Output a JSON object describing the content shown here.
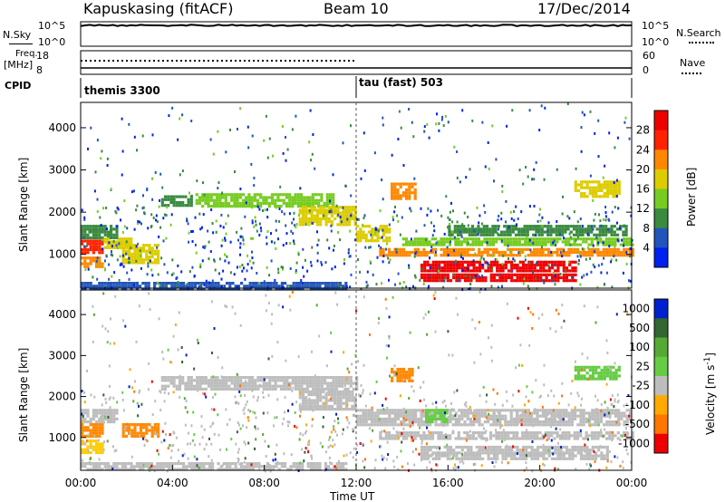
{
  "header": {
    "station": "Kapuskasing (fitACF)",
    "beam": "Beam 10",
    "date": "17/Dec/2014"
  },
  "left_labels": {
    "nsky": "N.Sky",
    "freq": "Freq.",
    "freq_unit": "[MHz]",
    "cpid": "CPID"
  },
  "right_labels": {
    "nsearch": "N.Search",
    "nave": "Nave"
  },
  "noise_panel": {
    "left_ticks": [
      "10^5",
      "10^0"
    ],
    "right_ticks": [
      "10^5",
      "10^0"
    ],
    "trace_level": 0.15
  },
  "freq_panel": {
    "left_ticks": [
      "18",
      "8"
    ],
    "right_ticks": [
      "60",
      "0"
    ],
    "freq_mhz": 12,
    "nave_until_hour": 12
  },
  "cpid": {
    "modes": [
      {
        "label": "themis 3300",
        "start_hour": 0,
        "end_hour": 12
      },
      {
        "label": "tau (fast) 503",
        "start_hour": 12,
        "end_hour": 24
      }
    ]
  },
  "chart_data": [
    {
      "type": "heatmap",
      "name": "power",
      "xlabel": "",
      "ylabel": "Slant Range [km]",
      "xlim": [
        0,
        24
      ],
      "ylim": [
        200,
        4600
      ],
      "yticks": [
        1000,
        2000,
        3000,
        4000
      ],
      "colorbar": {
        "label": "Power [dB]",
        "ticks": [
          4,
          8,
          12,
          16,
          20,
          24,
          28
        ],
        "range": [
          0,
          32
        ],
        "colors": [
          "#0022ee",
          "#2255bb",
          "#3a8a40",
          "#77cc22",
          "#ddcc00",
          "#ff8800",
          "#ff2200",
          "#ee0000"
        ]
      },
      "bands": [
        {
          "t0": 0,
          "t1": 1.0,
          "r0": 1050,
          "r1": 1350,
          "v": 27
        },
        {
          "t0": 0,
          "t1": 0.9,
          "r0": 700,
          "r1": 950,
          "v": 21
        },
        {
          "t0": 0,
          "t1": 1.6,
          "r0": 1400,
          "r1": 1700,
          "v": 10
        },
        {
          "t0": 1.0,
          "t1": 2.2,
          "r0": 1150,
          "r1": 1400,
          "v": 17
        },
        {
          "t0": 1.8,
          "t1": 3.4,
          "r0": 800,
          "r1": 1250,
          "v": 18
        },
        {
          "t0": 3.5,
          "t1": 4.8,
          "r0": 2150,
          "r1": 2400,
          "v": 9
        },
        {
          "t0": 5.0,
          "t1": 11.0,
          "r0": 2150,
          "r1": 2450,
          "v": 12
        },
        {
          "t0": 9.5,
          "t1": 12.0,
          "r0": 1700,
          "r1": 2150,
          "v": 16
        },
        {
          "t0": 12.0,
          "t1": 13.5,
          "r0": 1300,
          "r1": 1700,
          "v": 18
        },
        {
          "t0": 13.0,
          "t1": 24.0,
          "r0": 950,
          "r1": 1150,
          "v": 22
        },
        {
          "t0": 14.8,
          "t1": 21.5,
          "r0": 600,
          "r1": 850,
          "v": 29
        },
        {
          "t0": 14.8,
          "t1": 21.5,
          "r0": 400,
          "r1": 550,
          "v": 29
        },
        {
          "t0": 14.0,
          "t1": 24.0,
          "r0": 1200,
          "r1": 1400,
          "v": 14
        },
        {
          "t0": 13.5,
          "t1": 14.6,
          "r0": 2350,
          "r1": 2700,
          "v": 21
        },
        {
          "t0": 16.0,
          "t1": 23.8,
          "r0": 1450,
          "r1": 1700,
          "v": 9
        },
        {
          "t0": 21.5,
          "t1": 23.5,
          "r0": 2400,
          "r1": 2750,
          "v": 17
        },
        {
          "t0": 0,
          "t1": 11.5,
          "r0": 200,
          "r1": 350,
          "v": 6
        }
      ]
    },
    {
      "type": "heatmap",
      "name": "velocity",
      "xlabel": "Time UT",
      "ylabel": "Slant Range [km]",
      "xlim": [
        0,
        24
      ],
      "ylim": [
        200,
        4600
      ],
      "xticks": [
        "00:00",
        "04:00",
        "08:00",
        "12:00",
        "16:00",
        "20:00",
        "00:00"
      ],
      "yticks": [
        1000,
        2000,
        3000,
        4000
      ],
      "colorbar": {
        "label": "Velocity [m s",
        "label_sup": "-1",
        "label_close": "]",
        "ticks": [
          "1000",
          "500",
          "100",
          "25",
          "-25",
          "-100",
          "-500",
          "-1000"
        ],
        "colors": [
          "#0022cc",
          "#336633",
          "#55aa33",
          "#66cc44",
          "#bdbdbd",
          "#ffaa00",
          "#ff7700",
          "#ee0000"
        ]
      },
      "bands": [
        {
          "t0": 0,
          "t1": 1.0,
          "r0": 1050,
          "r1": 1350,
          "v": "#ff8800"
        },
        {
          "t0": 0,
          "t1": 0.9,
          "r0": 600,
          "r1": 950,
          "v": "#ffcc00"
        },
        {
          "t0": 0,
          "t1": 1.6,
          "r0": 1400,
          "r1": 1700,
          "v": "#bdbdbd"
        },
        {
          "t0": 1.8,
          "t1": 3.4,
          "r0": 1000,
          "r1": 1350,
          "v": "#ff8800"
        },
        {
          "t0": 3.5,
          "t1": 12.0,
          "r0": 2150,
          "r1": 2500,
          "v": "#bdbdbd"
        },
        {
          "t0": 9.5,
          "t1": 12.0,
          "r0": 1700,
          "r1": 2150,
          "v": "#bdbdbd"
        },
        {
          "t0": 12.0,
          "t1": 24.0,
          "r0": 1300,
          "r1": 1700,
          "v": "#bdbdbd"
        },
        {
          "t0": 13.0,
          "t1": 24.0,
          "r0": 950,
          "r1": 1150,
          "v": "#bdbdbd"
        },
        {
          "t0": 14.8,
          "t1": 23.0,
          "r0": 450,
          "r1": 800,
          "v": "#bdbdbd"
        },
        {
          "t0": 13.5,
          "t1": 14.4,
          "r0": 2350,
          "r1": 2700,
          "v": "#ff8800"
        },
        {
          "t0": 15.0,
          "t1": 16.0,
          "r0": 1350,
          "r1": 1700,
          "v": "#66cc44"
        },
        {
          "t0": 21.5,
          "t1": 23.5,
          "r0": 2400,
          "r1": 2750,
          "v": "#66cc44"
        },
        {
          "t0": 0,
          "t1": 11.5,
          "r0": 200,
          "r1": 400,
          "v": "#bdbdbd"
        }
      ]
    }
  ]
}
